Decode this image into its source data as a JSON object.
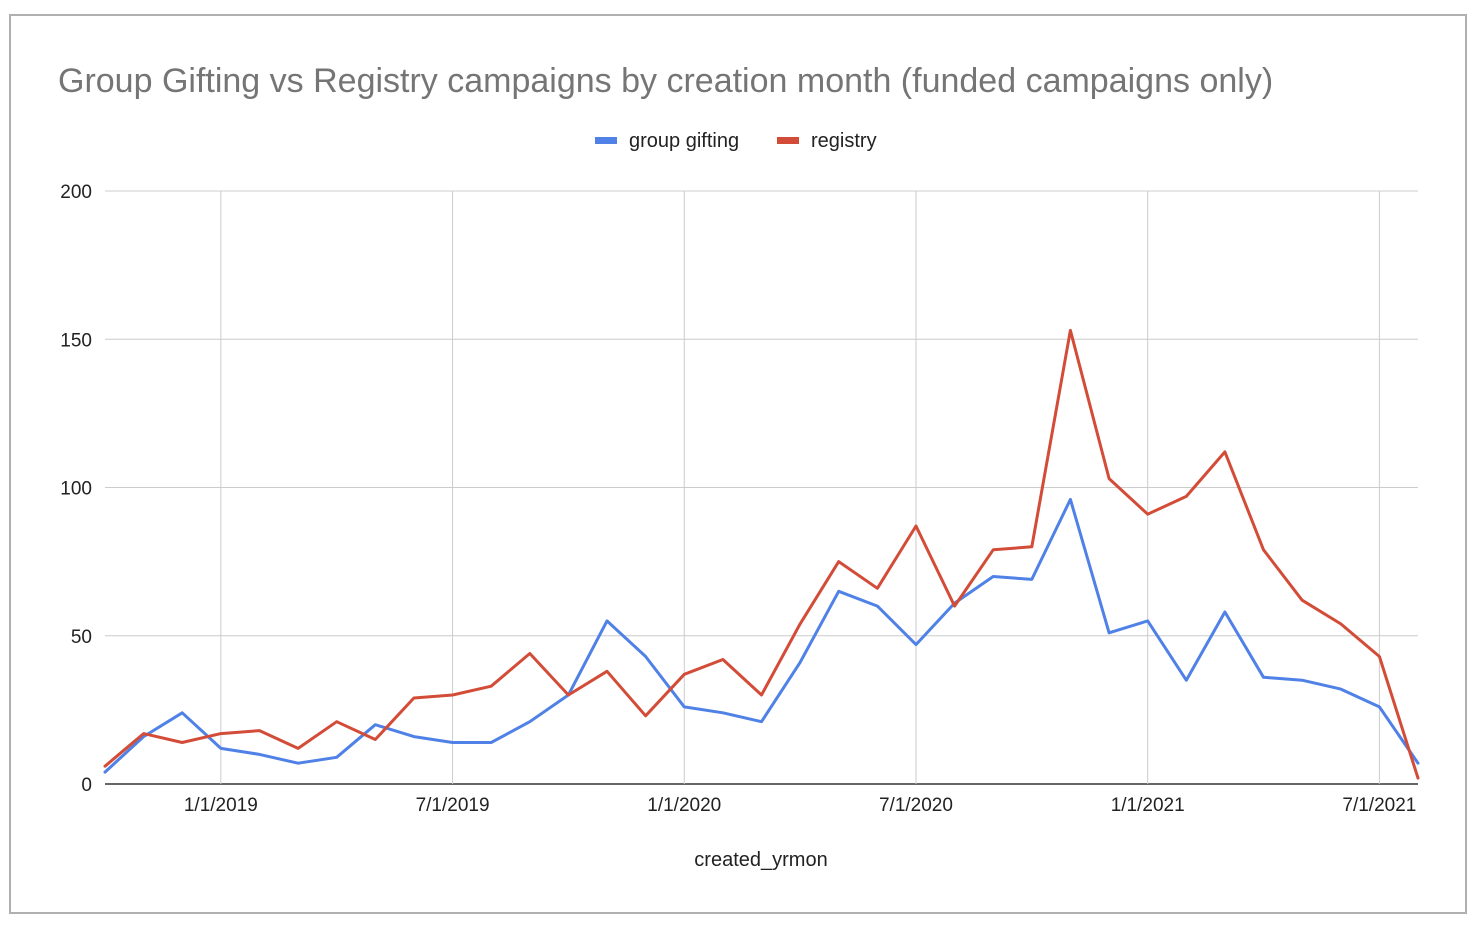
{
  "chart_data": {
    "type": "line",
    "title": "Group Gifting vs Registry campaigns by creation month (funded campaigns only)",
    "xlabel": "created_yrmon",
    "ylabel": "",
    "ylim": [
      0,
      200
    ],
    "yticks": [
      0,
      50,
      100,
      150,
      200
    ],
    "x_ticks": [
      {
        "label": "1/1/2019",
        "index": 3
      },
      {
        "label": "7/1/2019",
        "index": 9
      },
      {
        "label": "1/1/2020",
        "index": 15
      },
      {
        "label": "7/1/2020",
        "index": 21
      },
      {
        "label": "1/1/2021",
        "index": 27
      },
      {
        "label": "7/1/2021",
        "index": 33
      }
    ],
    "x": [
      "10/1/2018",
      "11/1/2018",
      "12/1/2018",
      "1/1/2019",
      "2/1/2019",
      "3/1/2019",
      "4/1/2019",
      "5/1/2019",
      "6/1/2019",
      "7/1/2019",
      "8/1/2019",
      "9/1/2019",
      "10/1/2019",
      "11/1/2019",
      "12/1/2019",
      "1/1/2020",
      "2/1/2020",
      "3/1/2020",
      "4/1/2020",
      "5/1/2020",
      "6/1/2020",
      "7/1/2020",
      "8/1/2020",
      "9/1/2020",
      "10/1/2020",
      "11/1/2020",
      "12/1/2020",
      "1/1/2021",
      "2/1/2021",
      "3/1/2021",
      "4/1/2021",
      "5/1/2021",
      "6/1/2021",
      "7/1/2021",
      "8/1/2021"
    ],
    "series": [
      {
        "name": "group gifting",
        "color": "#4f81e6",
        "values": [
          4,
          16,
          24,
          12,
          10,
          7,
          9,
          20,
          16,
          14,
          14,
          21,
          30,
          55,
          43,
          26,
          24,
          21,
          41,
          65,
          60,
          47,
          61,
          70,
          69,
          96,
          51,
          55,
          35,
          58,
          36,
          35,
          32,
          26,
          7
        ]
      },
      {
        "name": "registry",
        "color": "#d24c38",
        "values": [
          6,
          17,
          14,
          17,
          18,
          12,
          21,
          15,
          29,
          30,
          33,
          44,
          30,
          38,
          23,
          37,
          42,
          30,
          54,
          75,
          66,
          87,
          60,
          79,
          80,
          153,
          103,
          91,
          97,
          112,
          79,
          62,
          54,
          43,
          2
        ]
      }
    ],
    "legend": "top-center",
    "grid": true
  }
}
